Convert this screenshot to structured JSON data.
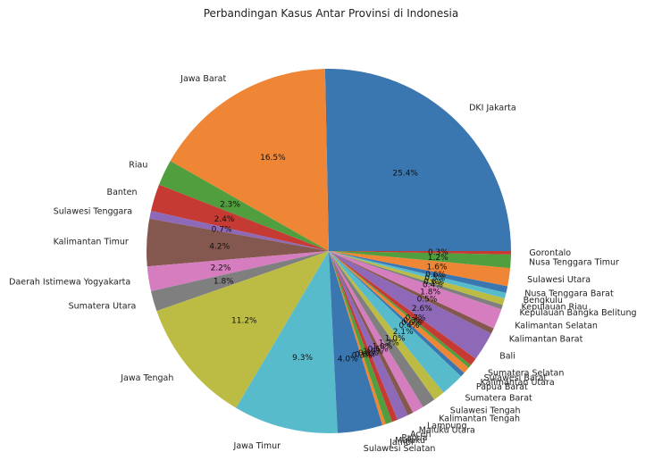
{
  "chart_data": {
    "type": "pie",
    "title": "Perbandingan Kasus Antar Provinsi di Indonesia",
    "start_angle": 0,
    "direction": "counterclockwise",
    "autopct_format": "%.1f%%",
    "labels": [
      "DKI Jakarta",
      "Jawa Barat",
      "Riau",
      "Banten",
      "Sulawesi Tenggara",
      "Kalimantan Timur",
      "Daerah Istimewa Yogyakarta",
      "Sumatera Utara",
      "Jawa Tengah",
      "Jawa Timur",
      "Sulawesi Selatan",
      "Jambi",
      "Maluku",
      "Papua",
      "Aceh",
      "Maluku Utara",
      "Lampung",
      "Kalimantan Tengah",
      "Sulawesi Tengah",
      "Sumatera Barat",
      "Papua Barat",
      "Kalimantan Utara",
      "Sulawesi Barat",
      "Sumatera Selatan",
      "Bali",
      "Kalimantan Barat",
      "Kalimantan Selatan",
      "Kepulauan Bangka Belitung",
      "Kepulauan Riau",
      "Bengkulu",
      "Nusa Tenggara Barat",
      "Sulawesi Utara",
      "Nusa Tenggara Timur",
      "Gorontalo"
    ],
    "values": [
      25.4,
      16.5,
      2.3,
      2.4,
      0.7,
      4.2,
      2.2,
      1.8,
      11.2,
      9.3,
      4.0,
      0.3,
      0.6,
      0.5,
      1.0,
      0.5,
      1.0,
      1.2,
      1.0,
      2.1,
      0.4,
      0.6,
      0.3,
      0.7,
      2.6,
      0.5,
      1.8,
      0.4,
      0.6,
      0.5,
      0.6,
      1.6,
      1.2,
      0.3
    ],
    "colors": [
      "#3a76af",
      "#ef8636",
      "#519e3e",
      "#c53a32",
      "#8d69b8",
      "#84584e",
      "#d57dbe",
      "#7f7f7f",
      "#bcbc45",
      "#58bbcc"
    ]
  }
}
